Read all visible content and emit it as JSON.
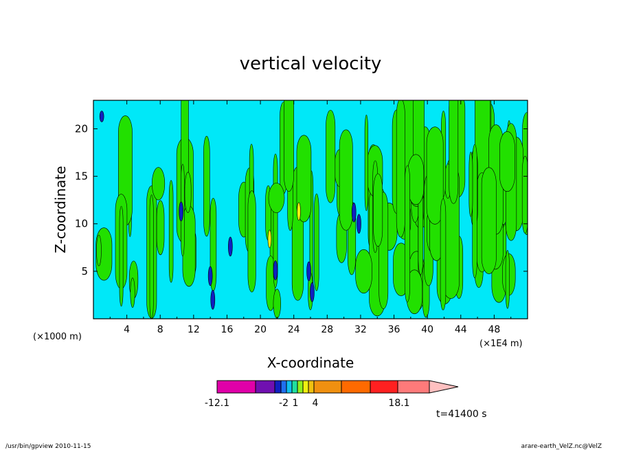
{
  "chart_data": {
    "type": "heatmap",
    "title": "vertical velocity",
    "xlabel": "X-coordinate",
    "ylabel": "Z-coordinate",
    "xlim": [
      0,
      52
    ],
    "ylim": [
      0,
      23
    ],
    "x_ticks": [
      "4",
      "8",
      "12",
      "16",
      "20",
      "24",
      "28",
      "32",
      "36",
      "40",
      "44",
      "48"
    ],
    "y_ticks": [
      "5",
      "10",
      "15",
      "20"
    ],
    "x_unit_left": "(×1000 m)",
    "x_unit_right": "(×1E4 m)",
    "colorbar": {
      "colors": [
        "#e000a8",
        "#7010b0",
        "#1020c0",
        "#2070f0",
        "#10c0f0",
        "#20e0a0",
        "#90f020",
        "#f0f010",
        "#f0c010",
        "#f09010",
        "#ff6a00",
        "#ff2020",
        "#ff7a7a",
        "#ffc0c0"
      ],
      "labels": [
        "-12.1",
        "-2",
        "1",
        "4",
        "18.1"
      ]
    },
    "background_color": "#00e8f8",
    "updraft_color": "#22e000",
    "time_label": "t=41400 s",
    "footer_left": "/usr/bin/gpview   2010-11-15",
    "footer_right": "arare-earth_VelZ.nc@VelZ"
  }
}
